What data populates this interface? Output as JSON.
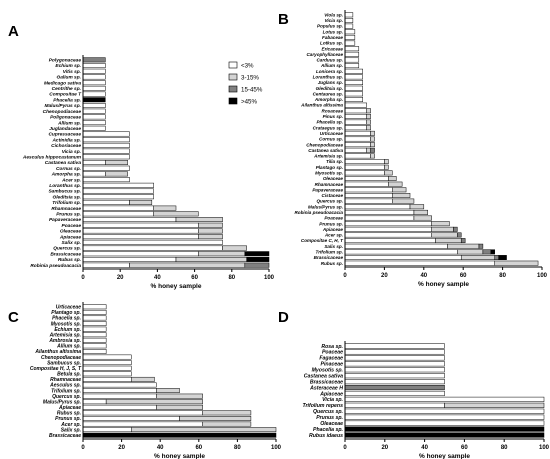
{
  "legend": {
    "entries": [
      {
        "label": "<3%",
        "color": "#ffffff"
      },
      {
        "label": "3-15%",
        "color": "#d4d4d4"
      },
      {
        "label": "15-45%",
        "color": "#808080"
      },
      {
        "label": ">45%",
        "color": "#000000"
      }
    ]
  },
  "chart_data": [
    {
      "type": "bar",
      "orientation": "horizontal",
      "stacked": true,
      "panel": "A",
      "xlabel": "% honey sample",
      "xlim": [
        0,
        100
      ],
      "xticks": [
        0,
        20,
        40,
        60,
        80,
        100
      ],
      "grid": false,
      "legend_position": "top-right",
      "categories": [
        "Polygonaceae",
        "Echium sp.",
        "Vitis sp.",
        "Galium sp.",
        "Medicago sativa",
        "Centrithe sp.",
        "Compositae T",
        "Phacelia sp.",
        "Malus/Pyrus sp.",
        "Chenopodiaceae",
        "Poligonaceae",
        "Allium sp.",
        "Juglandaceae",
        "Cupressaceae",
        "Actinidia sp.",
        "Cichoriaceae",
        "Vicia sp.",
        "Aesculus hippocastanum",
        "Castanea sativa",
        "Cornus sp.",
        "Amorpha sp.",
        "Acer sp.",
        "Loranthus sp.",
        "Sambucus sp.",
        "Gleditsia sp.",
        "Trifolium sp.",
        "Rhamnaceae",
        "Prunus sp.",
        "Papaveraceae",
        "Poaceae",
        "Oleaceae",
        "Apiaceae",
        "Salix sp.",
        "Quercus sp.",
        "Brassicaceae",
        "Rubus sp.",
        "Robinia pseudoacacia"
      ],
      "series": [
        {
          "name": "<3%",
          "values": [
            0,
            12,
            12,
            12,
            12,
            12,
            12,
            0,
            12,
            12,
            12,
            12,
            12,
            25,
            25,
            25,
            25,
            25,
            12,
            25,
            12,
            25,
            38,
            38,
            38,
            25,
            38,
            38,
            50,
            62,
            62,
            62,
            75,
            75,
            62,
            50,
            25
          ]
        },
        {
          "name": "3-15%",
          "values": [
            0,
            0,
            0,
            0,
            0,
            0,
            0,
            0,
            0,
            0,
            0,
            0,
            0,
            0,
            0,
            0,
            0,
            0,
            12,
            0,
            12,
            0,
            0,
            0,
            0,
            12,
            12,
            24,
            25,
            13,
            13,
            13,
            0,
            13,
            25,
            38,
            62
          ]
        },
        {
          "name": "15-45%",
          "values": [
            12,
            0,
            0,
            0,
            0,
            0,
            0,
            0,
            0,
            0,
            0,
            0,
            0,
            0,
            0,
            0,
            0,
            0,
            0,
            0,
            0,
            0,
            0,
            0,
            0,
            0,
            0,
            0,
            0,
            0,
            0,
            0,
            0,
            0,
            0,
            0,
            13
          ]
        },
        {
          "name": ">45%",
          "values": [
            0,
            0,
            0,
            0,
            0,
            0,
            0,
            12,
            0,
            0,
            0,
            0,
            0,
            0,
            0,
            0,
            0,
            0,
            0,
            0,
            0,
            0,
            0,
            0,
            0,
            0,
            0,
            0,
            0,
            0,
            0,
            0,
            0,
            0,
            13,
            12,
            0
          ]
        }
      ]
    },
    {
      "type": "bar",
      "orientation": "horizontal",
      "stacked": true,
      "panel": "B",
      "xlabel": "% honey sample",
      "xlim": [
        0,
        100
      ],
      "xticks": [
        0,
        20,
        40,
        60,
        80,
        100
      ],
      "grid": false,
      "categories": [
        "Viola sp.",
        "Vicia sp.",
        "Populus sp.",
        "Lotus sp.",
        "Fabaceae",
        "Lotkus sp.",
        "Ericaceae",
        "Caryophyllaceae",
        "Carduus sp.",
        "Allium sp.",
        "Lonicera sp.",
        "Loranthus sp.",
        "Juglans sp.",
        "Gleditsia sp.",
        "Centaurea sp.",
        "Amorpha sp.",
        "Ailanthus altissima",
        "Rosaceae",
        "Pinus sp.",
        "Phacelia sp.",
        "Crataegus sp.",
        "Urticaceae",
        "Cornus sp.",
        "Chenopodiaceae",
        "Castanea sativa",
        "Artemisia sp.",
        "Tilia sp.",
        "Plantago sp.",
        "Myosotis sp.",
        "Oleaceae",
        "Rhamnaceae",
        "Papaveraceae",
        "Cistaceae",
        "Quercus sp.",
        "Malus/Pyrus sp.",
        "Robinia pseudoacacia",
        "Poaceae",
        "Prunus sp.",
        "Apiaceae",
        "Acer sp.",
        "Compositae C, H, T",
        "Salix sp.",
        "Trifolium sp.",
        "Brassicaceae",
        "Rubus sp."
      ],
      "series": [
        {
          "name": "<3%",
          "values": [
            4,
            4,
            4,
            5,
            5,
            5,
            7,
            7,
            7,
            7,
            9,
            9,
            9,
            9,
            9,
            9,
            11,
            11,
            11,
            11,
            11,
            13,
            13,
            13,
            11,
            13,
            20,
            20,
            20,
            22,
            22,
            24,
            24,
            24,
            33,
            35,
            35,
            44,
            44,
            44,
            46,
            52,
            57,
            59,
            76
          ]
        },
        {
          "name": "3-15%",
          "values": [
            0,
            0,
            0,
            0,
            0,
            0,
            0,
            0,
            0,
            0,
            0,
            0,
            0,
            0,
            0,
            0,
            0,
            2,
            2,
            2,
            2,
            2,
            2,
            2,
            2,
            2,
            2,
            2,
            4,
            4,
            7,
            7,
            9,
            11,
            7,
            7,
            9,
            9,
            11,
            13,
            13,
            16,
            13,
            17,
            22
          ]
        },
        {
          "name": "15-45%",
          "values": [
            0,
            0,
            0,
            0,
            0,
            0,
            0,
            0,
            0,
            0,
            0,
            0,
            0,
            0,
            0,
            0,
            0,
            0,
            0,
            0,
            0,
            0,
            0,
            0,
            2,
            0,
            0,
            0,
            0,
            0,
            0,
            0,
            0,
            0,
            0,
            0,
            0,
            0,
            2,
            2,
            2,
            2,
            4,
            2,
            0
          ]
        },
        {
          "name": ">45%",
          "values": [
            0,
            0,
            0,
            0,
            0,
            0,
            0,
            0,
            0,
            0,
            0,
            0,
            0,
            0,
            0,
            0,
            0,
            0,
            0,
            0,
            0,
            0,
            0,
            0,
            0,
            0,
            0,
            0,
            0,
            0,
            0,
            0,
            0,
            0,
            0,
            0,
            0,
            0,
            0,
            0,
            0,
            0,
            2,
            4,
            0
          ]
        }
      ]
    },
    {
      "type": "bar",
      "orientation": "horizontal",
      "stacked": true,
      "panel": "C",
      "xlabel": "% honey sample",
      "xlim": [
        0,
        100
      ],
      "xticks": [
        0,
        20,
        40,
        60,
        80,
        100
      ],
      "grid": false,
      "categories": [
        "Urticaceae",
        "Plantago sp.",
        "Phacelia sp.",
        "Myosotis sp.",
        "Echium sp.",
        "Artemisia sp.",
        "Ambrosia sp.",
        "Allium sp.",
        "Ailanthus altissima",
        "Chenopodiaceae",
        "Sambucus sp.",
        "Compositae H, J, S, T",
        "Betula sp.",
        "Rhamnaceae",
        "Aesculus sp.",
        "Trifolium sp.",
        "Quercus sp.",
        "Malus/Pyrus sp.",
        "Apiaceae",
        "Rubus sp.",
        "Prunus sp.",
        "Acer sp.",
        "Salix sp.",
        "Brassicaceae"
      ],
      "series": [
        {
          "name": "<3%",
          "values": [
            12,
            12,
            12,
            12,
            12,
            12,
            12,
            12,
            12,
            25,
            25,
            25,
            25,
            25,
            38,
            38,
            38,
            12,
            38,
            62,
            50,
            62,
            25,
            0
          ]
        },
        {
          "name": "3-15%",
          "values": [
            0,
            0,
            0,
            0,
            0,
            0,
            0,
            0,
            0,
            0,
            0,
            0,
            0,
            12,
            0,
            12,
            24,
            50,
            24,
            25,
            37,
            25,
            75,
            0
          ]
        },
        {
          "name": "15-45%",
          "values": [
            0,
            0,
            0,
            0,
            0,
            0,
            0,
            0,
            0,
            0,
            0,
            0,
            0,
            0,
            0,
            0,
            0,
            0,
            0,
            0,
            0,
            0,
            0,
            0
          ]
        },
        {
          "name": ">45%",
          "values": [
            0,
            0,
            0,
            0,
            0,
            0,
            0,
            0,
            0,
            0,
            0,
            0,
            0,
            0,
            0,
            0,
            0,
            0,
            0,
            0,
            0,
            0,
            0,
            100
          ]
        }
      ]
    },
    {
      "type": "bar",
      "orientation": "horizontal",
      "stacked": true,
      "panel": "D",
      "xlabel": "% honey sample",
      "xlim": [
        0,
        100
      ],
      "xticks": [
        0,
        20,
        40,
        60,
        80,
        100
      ],
      "grid": false,
      "categories": [
        "Rosa sp.",
        "Poaceae",
        "Fagaceae",
        "Pinaceae",
        "Myosotis sp.",
        "Castanea sativa",
        "Brassicaceae",
        "Asteraceae H",
        "Apiaceae",
        "Vicia sp.",
        "Trifolium repens",
        "Quercus sp.",
        "Prunus sp.",
        "Oleaceae",
        "Phacelia sp.",
        "Rubus idaeus"
      ],
      "series": [
        {
          "name": "<3%",
          "values": [
            50,
            50,
            50,
            50,
            50,
            50,
            50,
            0,
            50,
            100,
            50,
            100,
            100,
            100,
            0,
            0
          ]
        },
        {
          "name": "3-15%",
          "values": [
            0,
            0,
            0,
            0,
            0,
            0,
            0,
            0,
            0,
            0,
            50,
            0,
            0,
            0,
            0,
            0
          ]
        },
        {
          "name": "15-45%",
          "values": [
            0,
            0,
            0,
            0,
            0,
            0,
            0,
            50,
            0,
            0,
            0,
            0,
            0,
            0,
            0,
            0
          ]
        },
        {
          "name": ">45%",
          "values": [
            0,
            0,
            0,
            0,
            0,
            0,
            0,
            0,
            0,
            0,
            0,
            0,
            0,
            0,
            100,
            100
          ]
        }
      ]
    }
  ]
}
